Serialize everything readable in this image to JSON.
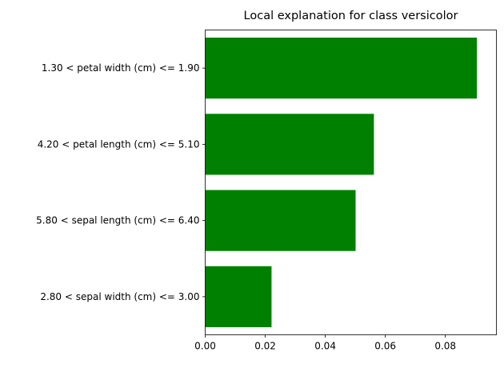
{
  "chart_data": {
    "type": "bar",
    "orientation": "horizontal",
    "title": "Local explanation for class versicolor",
    "xlabel": "",
    "ylabel": "",
    "categories": [
      "1.30 < petal width (cm) <= 1.90",
      "4.20 < petal length (cm) <= 5.10",
      "5.80 < sepal length (cm) <= 6.40",
      "2.80 < sepal width (cm) <= 3.00"
    ],
    "values": [
      0.0905,
      0.0562,
      0.0501,
      0.0221
    ],
    "xlim": [
      0,
      0.097
    ],
    "x_ticks": [
      0.0,
      0.02,
      0.04,
      0.06,
      0.08
    ],
    "x_tick_labels": [
      "0.00",
      "0.02",
      "0.04",
      "0.06",
      "0.08"
    ],
    "bar_color": "#008000",
    "grid": false,
    "legend": "none"
  }
}
